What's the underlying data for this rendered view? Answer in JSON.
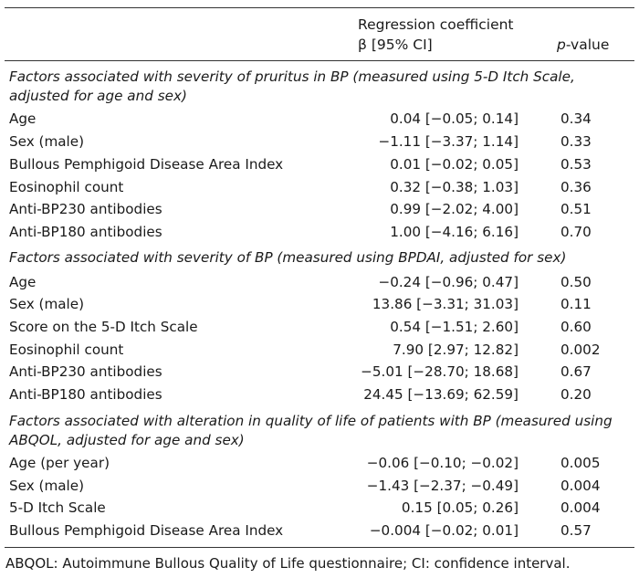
{
  "header": {
    "coef_line1": "Regression coefficient",
    "coef_line2": "β [95% CI]",
    "p_italic": "p",
    "p_rest": "-value"
  },
  "sections": [
    {
      "title": "Factors associated with severity of pruritus in BP (measured using 5-D Itch Scale, adjusted for age and sex)",
      "rows": [
        {
          "factor": "Age",
          "coef": "0.04 [−0.05; 0.14]",
          "p": "0.34"
        },
        {
          "factor": "Sex (male)",
          "coef": "−1.11 [−3.37; 1.14]",
          "p": "0.33"
        },
        {
          "factor": "Bullous Pemphigoid Disease Area Index",
          "coef": "0.01 [−0.02; 0.05]",
          "p": "0.53"
        },
        {
          "factor": "Eosinophil count",
          "coef": "0.32 [−0.38; 1.03]",
          "p": "0.36"
        },
        {
          "factor": "Anti-BP230 antibodies",
          "coef": "0.99 [−2.02; 4.00]",
          "p": "0.51"
        },
        {
          "factor": "Anti-BP180 antibodies",
          "coef": "1.00 [−4.16; 6.16]",
          "p": "0.70"
        }
      ]
    },
    {
      "title": "Factors associated with severity of BP (measured using BPDAI, adjusted for sex)",
      "rows": [
        {
          "factor": "Age",
          "coef": "−0.24 [−0.96; 0.47]",
          "p": "0.50"
        },
        {
          "factor": "Sex (male)",
          "coef": "13.86 [−3.31; 31.03]",
          "p": "0.11"
        },
        {
          "factor": "Score on the 5-D Itch Scale",
          "coef": "0.54 [−1.51; 2.60]",
          "p": "0.60"
        },
        {
          "factor": "Eosinophil count",
          "coef": "7.90 [2.97; 12.82]",
          "p": "0.002"
        },
        {
          "factor": "Anti-BP230 antibodies",
          "coef": "−5.01 [−28.70; 18.68]",
          "p": "0.67"
        },
        {
          "factor": "Anti-BP180 antibodies",
          "coef": "24.45 [−13.69; 62.59]",
          "p": "0.20"
        }
      ]
    },
    {
      "title": "Factors associated with alteration in quality of life of patients with BP (measured using ABQOL, adjusted for age and sex)",
      "rows": [
        {
          "factor": "Age (per year)",
          "coef": "−0.06 [−0.10; −0.02]",
          "p": "0.005"
        },
        {
          "factor": "Sex (male)",
          "coef": "−1.43 [−2.37; −0.49]",
          "p": "0.004"
        },
        {
          "factor": "5-D Itch Scale",
          "coef": "0.15 [0.05; 0.26]",
          "p": "0.004"
        },
        {
          "factor": "Bullous Pemphigoid Disease Area Index",
          "coef": "−0.004 [−0.02; 0.01]",
          "p": "0.57"
        }
      ]
    }
  ],
  "footnote": "ABQOL: Autoimmune Bullous Quality of Life questionnaire; CI: confidence interval."
}
